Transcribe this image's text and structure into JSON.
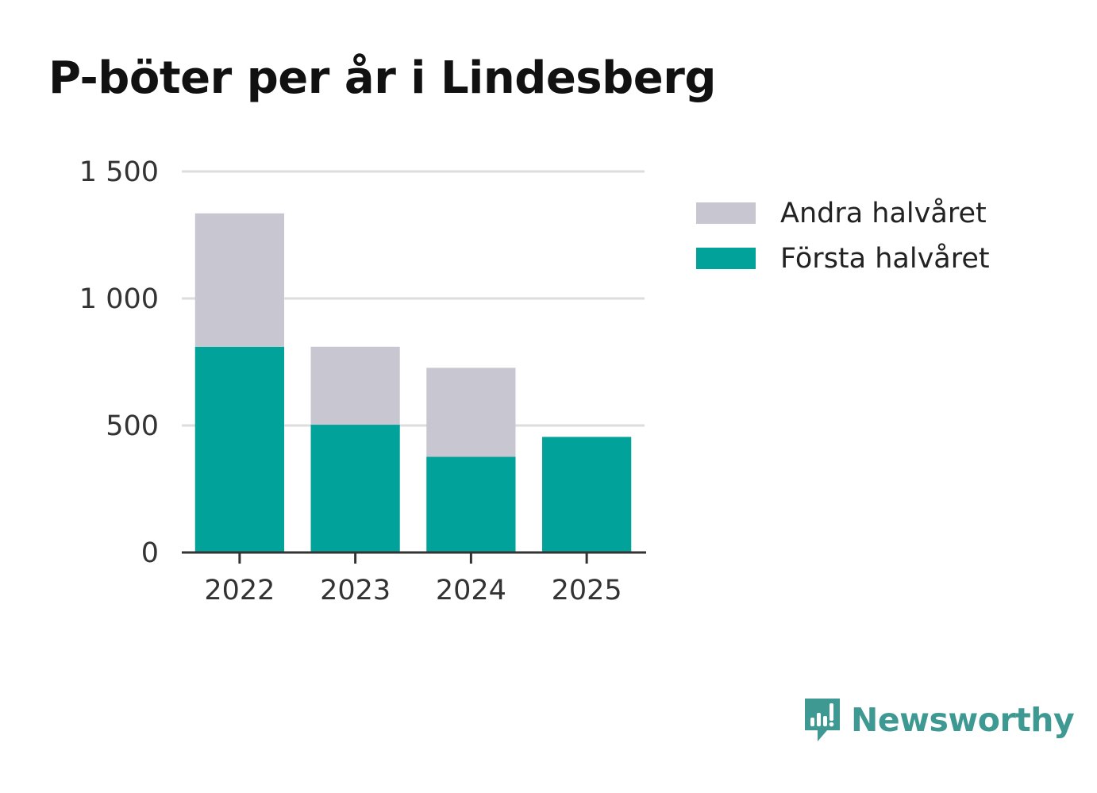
{
  "chart_data": {
    "type": "bar",
    "stacked": true,
    "title": "P-böter per år i Lindesberg",
    "categories": [
      "2022",
      "2023",
      "2024",
      "2025"
    ],
    "series": [
      {
        "name": "Första halvåret",
        "color": "#00a29a",
        "values": [
          810,
          503,
          377,
          455
        ]
      },
      {
        "name": "Andra halvåret",
        "color": "#c8c7d1",
        "values": [
          525,
          307,
          350,
          0
        ]
      }
    ],
    "legend_order": [
      "Andra halvåret",
      "Första halvåret"
    ],
    "legend_placement": "right",
    "yticks": [
      0,
      500,
      1000,
      1500
    ],
    "ytick_labels": [
      "0",
      "500",
      "1 000",
      "1 500"
    ],
    "ylim": [
      0,
      1500
    ],
    "xlabel": "",
    "ylabel": "",
    "grid": true
  },
  "brand": {
    "name": "Newsworthy",
    "color": "#3d9992",
    "icon": "newsworthy-logo-icon"
  }
}
